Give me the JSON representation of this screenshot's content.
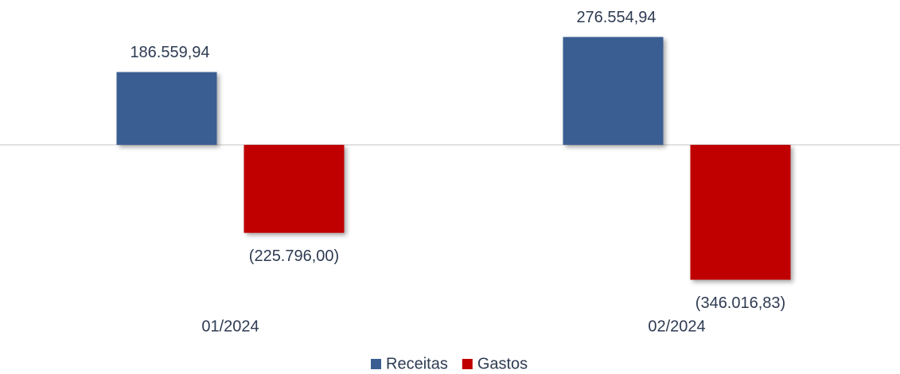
{
  "chart_data": {
    "type": "bar",
    "categories": [
      "01/2024",
      "02/2024"
    ],
    "series": [
      {
        "name": "Receitas",
        "color": "#3a5e92",
        "values": [
          186559.94,
          276554.94
        ],
        "value_labels": [
          "186.559,94",
          "276.554,94"
        ]
      },
      {
        "name": "Gastos",
        "color": "#c00000",
        "values": [
          -225796.0,
          -346016.83
        ],
        "value_labels": [
          "(225.796,00)",
          "(346.016,83)"
        ]
      }
    ],
    "ylim": [
      -400000,
      300000
    ]
  }
}
